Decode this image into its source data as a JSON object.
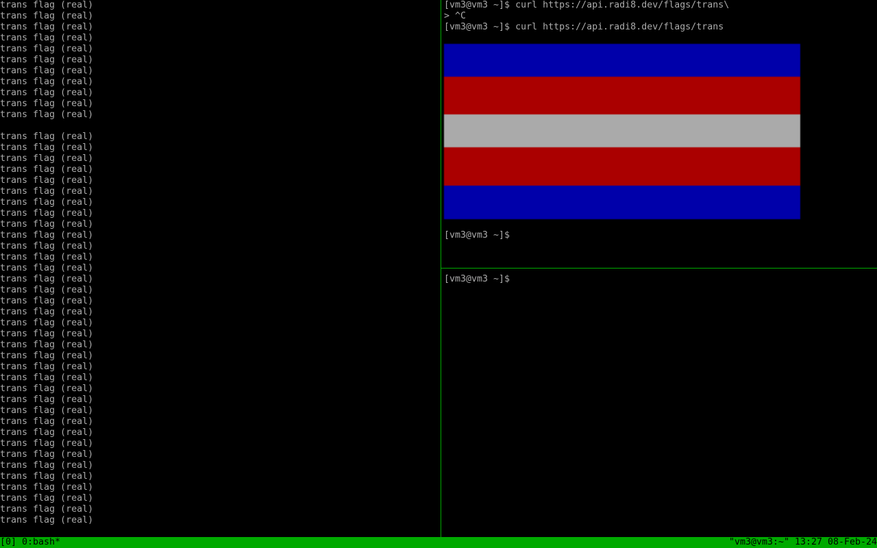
{
  "left_pane": {
    "lines": [
      "trans flag (real)",
      "trans flag (real)",
      "trans flag (real)",
      "trans flag (real)",
      "trans flag (real)",
      "trans flag (real)",
      "trans flag (real)",
      "trans flag (real)",
      "trans flag (real)",
      "trans flag (real)",
      "trans flag (real)",
      "",
      "trans flag (real)",
      "trans flag (real)",
      "trans flag (real)",
      "trans flag (real)",
      "trans flag (real)",
      "trans flag (real)",
      "trans flag (real)",
      "trans flag (real)",
      "trans flag (real)",
      "trans flag (real)",
      "trans flag (real)",
      "trans flag (real)",
      "trans flag (real)",
      "trans flag (real)",
      "trans flag (real)",
      "trans flag (real)",
      "trans flag (real)",
      "trans flag (real)",
      "trans flag (real)",
      "trans flag (real)",
      "trans flag (real)",
      "trans flag (real)",
      "trans flag (real)",
      "trans flag (real)",
      "trans flag (real)",
      "trans flag (real)",
      "trans flag (real)",
      "trans flag (real)",
      "trans flag (real)",
      "trans flag (real)",
      "trans flag (real)",
      "trans flag (real)",
      "trans flag (real)",
      "trans flag (real)",
      "trans flag (real)",
      "trans flag (real)"
    ]
  },
  "right_top_pane": {
    "lines_before": [
      "[vm3@vm3 ~]$ curl https://api.radi8.dev/flags/trans\\",
      "> ^C",
      "[vm3@vm3 ~]$ curl https://api.radi8.dev/flags/trans"
    ],
    "prompt_after": "[vm3@vm3 ~]$",
    "flag_stripes": [
      "#0000aa",
      "#aa0000",
      "#aaaaaa",
      "#aa0000",
      "#0000aa"
    ]
  },
  "right_bottom_pane": {
    "prompt": "[vm3@vm3 ~]$"
  },
  "status_bar": {
    "session": "[0]",
    "window": "0:bash*",
    "host": "\"vm3@vm3:~\"",
    "time": "13:27",
    "date": "08-Feb-24",
    "color": "#00aa00"
  }
}
